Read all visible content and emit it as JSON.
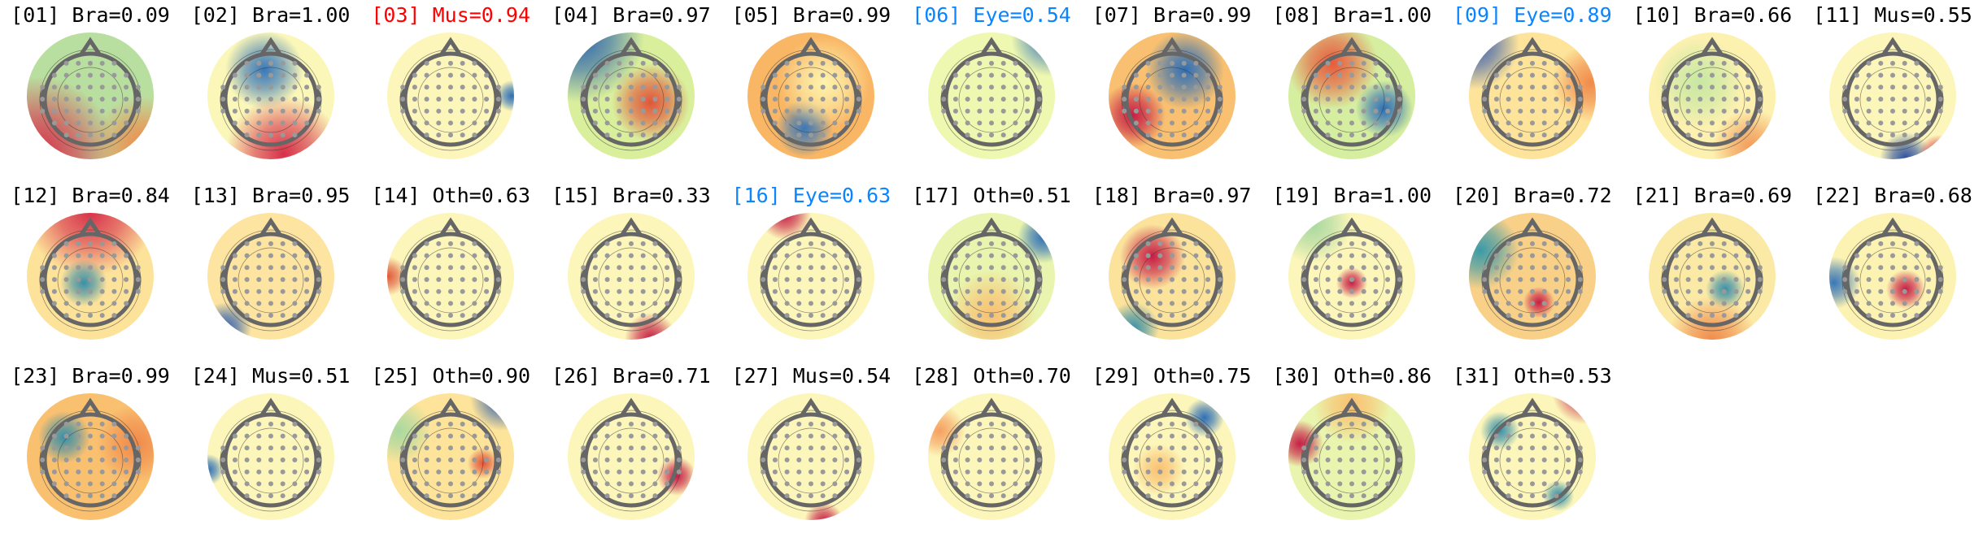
{
  "components": [
    {
      "label": "[01] Bra=0.09",
      "color": "#000000",
      "bg": "#b9dfa0",
      "blobs": [
        [
          "#d7304a",
          0.1,
          0.95,
          0.6
        ],
        [
          "#f08a4b",
          0.9,
          0.9,
          0.4
        ]
      ]
    },
    {
      "label": "[02] Bra=1.00",
      "color": "#000000",
      "bg": "#fbf7b8",
      "blobs": [
        [
          "#3a78b8",
          0.45,
          0.3,
          0.3
        ],
        [
          "#d7304a",
          0.6,
          0.95,
          0.45
        ]
      ]
    },
    {
      "label": "[03] Mus=0.94",
      "color": "#ff0000",
      "bg": "#fcf6ba",
      "blobs": [
        [
          "#2f6fb6",
          0.97,
          0.5,
          0.12
        ]
      ]
    },
    {
      "label": "[04] Bra=0.97",
      "color": "#000000",
      "bg": "#d9ef9c",
      "blobs": [
        [
          "#2b63ad",
          0.1,
          0.05,
          0.5
        ],
        [
          "#e0563a",
          0.65,
          0.55,
          0.3
        ]
      ]
    },
    {
      "label": "[05] Bra=0.99",
      "color": "#000000",
      "bg": "#f9b766",
      "blobs": [
        [
          "#3a78b8",
          0.45,
          0.75,
          0.22
        ],
        [
          "#fef3ae",
          0.6,
          0.4,
          0.35
        ]
      ]
    },
    {
      "label": "[06] Eye=0.54",
      "color": "#0a84ff",
      "bg": "#eef8b0",
      "blobs": [
        [
          "#3a78b8",
          0.95,
          0.05,
          0.3
        ]
      ]
    },
    {
      "label": "[07] Bra=0.99",
      "color": "#000000",
      "bg": "#f8c070",
      "blobs": [
        [
          "#2f6fb6",
          0.6,
          0.3,
          0.3
        ],
        [
          "#c61e45",
          0.2,
          0.65,
          0.25
        ]
      ]
    },
    {
      "label": "[08] Bra=1.00",
      "color": "#000000",
      "bg": "#d6ee9f",
      "blobs": [
        [
          "#e85a3c",
          0.35,
          0.25,
          0.35
        ],
        [
          "#2f6fb6",
          0.75,
          0.6,
          0.22
        ]
      ]
    },
    {
      "label": "[09] Eye=0.89",
      "color": "#0a84ff",
      "bg": "#fde49a",
      "blobs": [
        [
          "#3a5fb0",
          0.05,
          0.1,
          0.35
        ],
        [
          "#f08a4b",
          0.95,
          0.4,
          0.3
        ]
      ]
    },
    {
      "label": "[10] Bra=0.66",
      "color": "#000000",
      "bg": "#fdf1b0",
      "blobs": [
        [
          "#c7e8a3",
          0.4,
          0.4,
          0.35
        ],
        [
          "#f29b5a",
          0.8,
          0.9,
          0.3
        ]
      ]
    },
    {
      "label": "[11] Mus=0.55",
      "color": "#000000",
      "bg": "#fcf6ba",
      "blobs": [
        [
          "#2b4fa0",
          0.6,
          0.98,
          0.2
        ],
        [
          "#d7304a",
          0.85,
          0.95,
          0.15
        ]
      ]
    },
    {
      "label": "[12] Bra=0.84",
      "color": "#000000",
      "bg": "#fde29a",
      "blobs": [
        [
          "#d7304a",
          0.5,
          0.0,
          0.5
        ],
        [
          "#3a8fa8",
          0.45,
          0.55,
          0.18
        ]
      ]
    },
    {
      "label": "[13] Bra=0.95",
      "color": "#000000",
      "bg": "#fde4a0",
      "blobs": [
        [
          "#2f5fb0",
          0.15,
          0.9,
          0.2
        ]
      ]
    },
    {
      "label": "[14] Oth=0.63",
      "color": "#000000",
      "bg": "#fcf6ba",
      "blobs": [
        [
          "#e05a3c",
          0.02,
          0.5,
          0.15
        ]
      ]
    },
    {
      "label": "[15] Bra=0.33",
      "color": "#000000",
      "bg": "#fcf6ba",
      "blobs": [
        [
          "#c61e45",
          0.65,
          0.98,
          0.2
        ]
      ]
    },
    {
      "label": "[16] Eye=0.63",
      "color": "#0a84ff",
      "bg": "#fcf6ba",
      "blobs": [
        [
          "#c61e45",
          0.3,
          0.02,
          0.2
        ]
      ]
    },
    {
      "label": "[17] Oth=0.51",
      "color": "#000000",
      "bg": "#e9f5ae",
      "blobs": [
        [
          "#2f6fb6",
          0.9,
          0.2,
          0.2
        ],
        [
          "#f9c070",
          0.5,
          0.8,
          0.35
        ]
      ]
    },
    {
      "label": "[18] Bra=0.97",
      "color": "#000000",
      "bg": "#fbe39c",
      "blobs": [
        [
          "#c61e45",
          0.35,
          0.35,
          0.25
        ],
        [
          "#3a8fa8",
          0.2,
          0.9,
          0.2
        ]
      ]
    },
    {
      "label": "[19] Bra=1.00",
      "color": "#000000",
      "bg": "#fcf6ba",
      "blobs": [
        [
          "#c61e45",
          0.5,
          0.55,
          0.12
        ],
        [
          "#a8d8a0",
          0.2,
          0.1,
          0.3
        ]
      ]
    },
    {
      "label": "[20] Bra=0.72",
      "color": "#000000",
      "bg": "#f9d088",
      "blobs": [
        [
          "#3a9aa8",
          0.1,
          0.3,
          0.3
        ],
        [
          "#c61e45",
          0.55,
          0.7,
          0.12
        ]
      ]
    },
    {
      "label": "[21] Bra=0.69",
      "color": "#000000",
      "bg": "#fbeaa5",
      "blobs": [
        [
          "#3a8fa8",
          0.6,
          0.6,
          0.15
        ],
        [
          "#f08a4b",
          0.5,
          1.0,
          0.35
        ]
      ]
    },
    {
      "label": "[22] Bra=0.68",
      "color": "#000000",
      "bg": "#fcf2b2",
      "blobs": [
        [
          "#3a78b8",
          0.05,
          0.55,
          0.2
        ],
        [
          "#c61e45",
          0.6,
          0.6,
          0.15
        ]
      ]
    },
    {
      "label": "[23] Bra=0.99",
      "color": "#000000",
      "bg": "#f9c070",
      "blobs": [
        [
          "#3a8fa8",
          0.3,
          0.35,
          0.2
        ],
        [
          "#f08a4b",
          0.85,
          0.4,
          0.3
        ]
      ]
    },
    {
      "label": "[24] Mus=0.51",
      "color": "#000000",
      "bg": "#fcf6ba",
      "blobs": [
        [
          "#2f6fb6",
          0.02,
          0.6,
          0.12
        ]
      ]
    },
    {
      "label": "[25] Oth=0.90",
      "color": "#000000",
      "bg": "#fde49a",
      "blobs": [
        [
          "#2f5fb0",
          0.9,
          0.05,
          0.25
        ],
        [
          "#e0563a",
          0.75,
          0.55,
          0.12
        ],
        [
          "#a8d8a0",
          0.1,
          0.3,
          0.25
        ]
      ]
    },
    {
      "label": "[26] Bra=0.71",
      "color": "#000000",
      "bg": "#fcf6ba",
      "blobs": [
        [
          "#c61e45",
          0.85,
          0.65,
          0.15
        ]
      ]
    },
    {
      "label": "[27] Mus=0.54",
      "color": "#000000",
      "bg": "#fcf6ba",
      "blobs": [
        [
          "#c61e45",
          0.6,
          1.0,
          0.15
        ]
      ]
    },
    {
      "label": "[28] Oth=0.70",
      "color": "#000000",
      "bg": "#fcf6ba",
      "blobs": [
        [
          "#f5a060",
          0.1,
          0.3,
          0.2
        ]
      ]
    },
    {
      "label": "[29] Oth=0.75",
      "color": "#000000",
      "bg": "#fcf6ba",
      "blobs": [
        [
          "#2f6fb6",
          0.75,
          0.2,
          0.15
        ],
        [
          "#f9c070",
          0.4,
          0.6,
          0.2
        ]
      ]
    },
    {
      "label": "[30] Oth=0.86",
      "color": "#000000",
      "bg": "#e9f5ae",
      "blobs": [
        [
          "#c61e45",
          0.1,
          0.4,
          0.18
        ],
        [
          "#f9c070",
          0.5,
          0.1,
          0.3
        ]
      ]
    },
    {
      "label": "[31] Oth=0.53",
      "color": "#000000",
      "bg": "#fcf6ba",
      "blobs": [
        [
          "#c61e45",
          0.9,
          0.0,
          0.25
        ],
        [
          "#3a8fa8",
          0.25,
          0.3,
          0.15
        ],
        [
          "#3a8fa8",
          0.7,
          0.8,
          0.12
        ]
      ]
    }
  ]
}
